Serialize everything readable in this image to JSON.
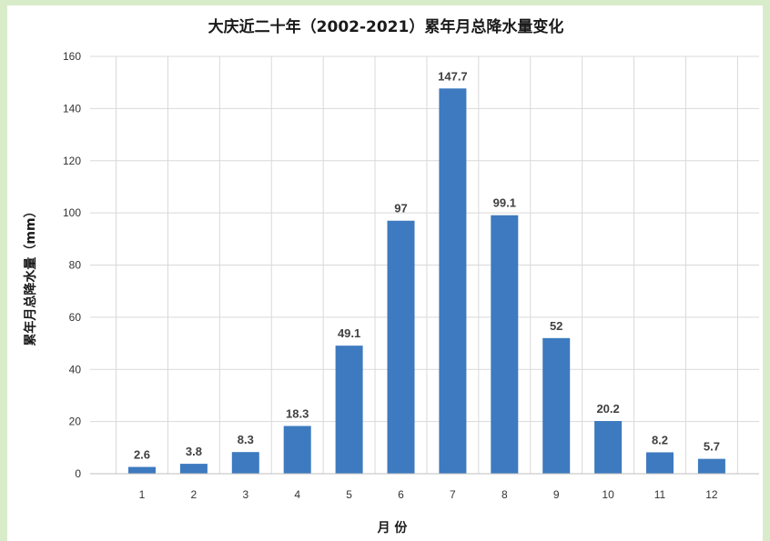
{
  "chart_data": {
    "type": "bar",
    "title": "大庆近二十年（2002-2021）累年月总降水量变化",
    "xlabel": "月 份",
    "ylabel": "累年月总降水量（mm）",
    "categories": [
      "1",
      "2",
      "3",
      "4",
      "5",
      "6",
      "7",
      "8",
      "9",
      "10",
      "11",
      "12"
    ],
    "values": [
      2.6,
      3.8,
      8.3,
      18.3,
      49.1,
      97,
      147.7,
      99.1,
      52,
      20.2,
      8.2,
      5.7
    ],
    "value_labels": [
      "2.6",
      "3.8",
      "8.3",
      "18.3",
      "49.1",
      "97",
      "147.7",
      "99.1",
      "52",
      "20.2",
      "8.2",
      "5.7"
    ],
    "ylim": [
      0,
      160
    ],
    "yticks": [
      0,
      20,
      40,
      60,
      80,
      100,
      120,
      140,
      160
    ],
    "grid": true,
    "legend": "none",
    "bar_color": "#3d7abf",
    "gridline_color": "#d9d9d9",
    "page_background": "#d9ecc9"
  }
}
